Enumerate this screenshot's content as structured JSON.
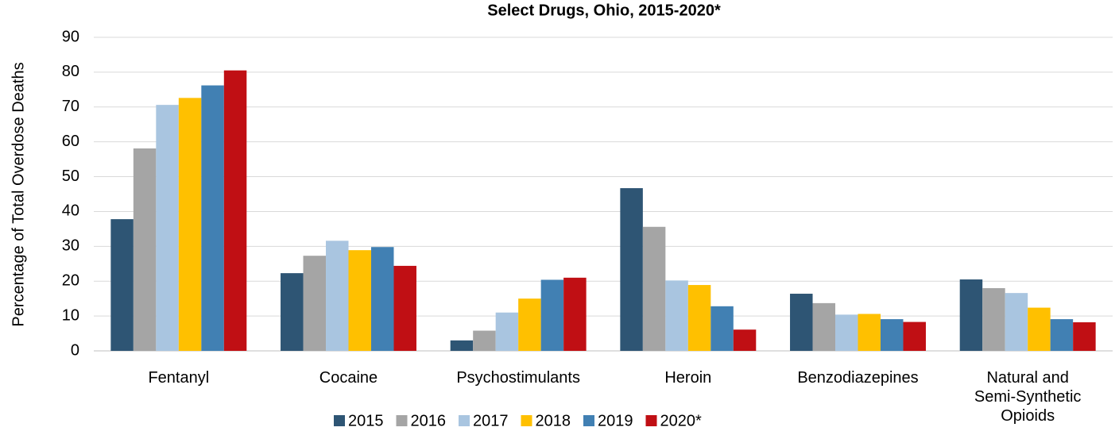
{
  "chart_data": {
    "type": "bar",
    "title": "Select Drugs, Ohio, 2015-2020*",
    "y_label": "Percentage of Total Overdose Deaths",
    "categories": [
      "Fentanyl",
      "Cocaine",
      "Psychostimulants",
      "Heroin",
      "Benzodiazepines",
      "Natural and Semi-Synthetic Opioids"
    ],
    "series": [
      {
        "name": "2015",
        "color": "#2e5574",
        "values": [
          37.8,
          22.3,
          3.0,
          46.7,
          16.4,
          20.5
        ]
      },
      {
        "name": "2016",
        "color": "#a5a5a5",
        "values": [
          58.1,
          27.3,
          5.8,
          35.6,
          13.7,
          18.0
        ]
      },
      {
        "name": "2017",
        "color": "#a9c5e0",
        "values": [
          70.6,
          31.6,
          11.0,
          20.2,
          10.4,
          16.6
        ]
      },
      {
        "name": "2018",
        "color": "#ffc000",
        "values": [
          72.6,
          28.9,
          15.0,
          18.9,
          10.6,
          12.4
        ]
      },
      {
        "name": "2019",
        "color": "#4180b3",
        "values": [
          76.2,
          29.8,
          20.4,
          12.8,
          9.1,
          9.1
        ]
      },
      {
        "name": "2020*",
        "color": "#c00f14",
        "values": [
          80.5,
          24.4,
          21.0,
          6.1,
          8.3,
          8.2
        ]
      }
    ],
    "ylim": [
      0,
      90
    ],
    "yticks": [
      0,
      10,
      20,
      30,
      40,
      50,
      60,
      70,
      80,
      90
    ],
    "grid": true,
    "legend": "bottom"
  }
}
